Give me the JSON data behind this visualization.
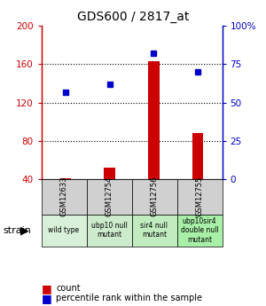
{
  "title": "GDS600 / 2817_at",
  "samples": [
    "GSM12633",
    "GSM12754",
    "GSM12756",
    "GSM12755"
  ],
  "strain_labels": [
    "wild type",
    "ubp10 null\nmutant",
    "sir4 null\nmutant",
    "ubp10sir4\ndouble null\nmutant"
  ],
  "count_values": [
    41,
    52,
    163,
    88
  ],
  "percentile_values": [
    57,
    62,
    82,
    70
  ],
  "left_ylim": [
    40,
    200
  ],
  "right_ylim": [
    0,
    100
  ],
  "left_yticks": [
    40,
    80,
    120,
    160,
    200
  ],
  "right_yticks": [
    0,
    25,
    50,
    75,
    100
  ],
  "right_yticklabels": [
    "0",
    "25",
    "50",
    "75",
    "100%"
  ],
  "bar_color": "#cc0000",
  "dot_color": "#0000cc",
  "left_label_color": "#cc0000",
  "right_label_color": "#0000cc",
  "gsm_box_color": "#d0d0d0",
  "strain_box_colors": [
    "#d8f0d8",
    "#cceacc",
    "#c0ecc0",
    "#a8f0a8"
  ]
}
